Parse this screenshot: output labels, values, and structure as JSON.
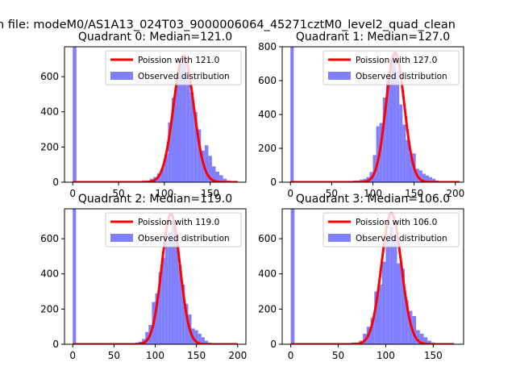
{
  "figure": {
    "suptitle": "n file: modeM0/AS1A13_024T03_9000006064_45271cztM0_level2_quad_clean",
    "background": "#ffffff"
  },
  "colors": {
    "poisson_line": "#ff0000",
    "observed_bars": "#8080ff",
    "axes": "#000000"
  },
  "chart_data": [
    {
      "type": "bar",
      "title": "Quadrant 0: Median=121.0",
      "xlim": [
        -9,
        189
      ],
      "ylim": [
        0,
        770
      ],
      "xticks": [
        0,
        50,
        100,
        150
      ],
      "yticks": [
        0,
        200,
        400,
        600
      ],
      "legend": {
        "placement": "top-right",
        "entries": [
          "Poission with 121.0",
          "Observed distribution"
        ]
      },
      "median": 121.0,
      "poisson_line": {
        "name": "Poission with 121.0",
        "x_range": [
          0,
          180
        ],
        "peak": 720,
        "mean": 121,
        "sd": 11
      },
      "histogram": {
        "name": "Observed distribution",
        "bins": [
          {
            "x0": 0,
            "x1": 4,
            "count": 770
          },
          {
            "x0": 64,
            "x1": 68,
            "count": 5
          },
          {
            "x0": 68,
            "x1": 72,
            "count": 5
          },
          {
            "x0": 72,
            "x1": 76,
            "count": 5
          },
          {
            "x0": 76,
            "x1": 80,
            "count": 10
          },
          {
            "x0": 80,
            "x1": 84,
            "count": 10
          },
          {
            "x0": 84,
            "x1": 88,
            "count": 20
          },
          {
            "x0": 88,
            "x1": 92,
            "count": 30
          },
          {
            "x0": 92,
            "x1": 96,
            "count": 50
          },
          {
            "x0": 96,
            "x1": 100,
            "count": 80
          },
          {
            "x0": 100,
            "x1": 104,
            "count": 160
          },
          {
            "x0": 104,
            "x1": 108,
            "count": 340
          },
          {
            "x0": 108,
            "x1": 112,
            "count": 480
          },
          {
            "x0": 112,
            "x1": 116,
            "count": 600
          },
          {
            "x0": 116,
            "x1": 120,
            "count": 690
          },
          {
            "x0": 120,
            "x1": 124,
            "count": 710
          },
          {
            "x0": 124,
            "x1": 128,
            "count": 610
          },
          {
            "x0": 128,
            "x1": 132,
            "count": 510
          },
          {
            "x0": 132,
            "x1": 136,
            "count": 400
          },
          {
            "x0": 136,
            "x1": 140,
            "count": 300
          },
          {
            "x0": 140,
            "x1": 144,
            "count": 180
          },
          {
            "x0": 144,
            "x1": 148,
            "count": 210
          },
          {
            "x0": 148,
            "x1": 152,
            "count": 150
          },
          {
            "x0": 152,
            "x1": 156,
            "count": 90
          },
          {
            "x0": 156,
            "x1": 160,
            "count": 60
          },
          {
            "x0": 160,
            "x1": 164,
            "count": 40
          },
          {
            "x0": 164,
            "x1": 168,
            "count": 20
          },
          {
            "x0": 168,
            "x1": 172,
            "count": 10
          }
        ]
      }
    },
    {
      "type": "bar",
      "title": "Quadrant 1: Median=127.0",
      "xlim": [
        -10,
        210
      ],
      "ylim": [
        0,
        800
      ],
      "xticks": [
        0,
        50,
        100,
        150,
        200
      ],
      "yticks": [
        0,
        200,
        400,
        600,
        800
      ],
      "legend": {
        "placement": "top-right",
        "entries": [
          "Poission with 127.0",
          "Observed distribution"
        ]
      },
      "median": 127.0,
      "poisson_line": {
        "name": "Poission with 127.0",
        "x_range": [
          0,
          205
        ],
        "peak": 765,
        "mean": 127,
        "sd": 11
      },
      "histogram": {
        "name": "Observed distribution",
        "bins": [
          {
            "x0": 0,
            "x1": 4,
            "count": 800
          },
          {
            "x0": 64,
            "x1": 68,
            "count": 5
          },
          {
            "x0": 68,
            "x1": 72,
            "count": 5
          },
          {
            "x0": 72,
            "x1": 76,
            "count": 5
          },
          {
            "x0": 76,
            "x1": 80,
            "count": 10
          },
          {
            "x0": 80,
            "x1": 84,
            "count": 10
          },
          {
            "x0": 84,
            "x1": 88,
            "count": 15
          },
          {
            "x0": 88,
            "x1": 92,
            "count": 20
          },
          {
            "x0": 92,
            "x1": 96,
            "count": 30
          },
          {
            "x0": 96,
            "x1": 100,
            "count": 60
          },
          {
            "x0": 100,
            "x1": 104,
            "count": 160
          },
          {
            "x0": 104,
            "x1": 108,
            "count": 330
          },
          {
            "x0": 108,
            "x1": 112,
            "count": 350
          },
          {
            "x0": 112,
            "x1": 116,
            "count": 500
          },
          {
            "x0": 116,
            "x1": 120,
            "count": 620
          },
          {
            "x0": 120,
            "x1": 124,
            "count": 730
          },
          {
            "x0": 124,
            "x1": 128,
            "count": 750
          },
          {
            "x0": 128,
            "x1": 132,
            "count": 660
          },
          {
            "x0": 132,
            "x1": 136,
            "count": 460
          },
          {
            "x0": 136,
            "x1": 140,
            "count": 340
          },
          {
            "x0": 140,
            "x1": 144,
            "count": 250
          },
          {
            "x0": 144,
            "x1": 148,
            "count": 170
          },
          {
            "x0": 148,
            "x1": 152,
            "count": 170
          },
          {
            "x0": 152,
            "x1": 156,
            "count": 80
          },
          {
            "x0": 156,
            "x1": 160,
            "count": 70
          },
          {
            "x0": 160,
            "x1": 164,
            "count": 50
          },
          {
            "x0": 164,
            "x1": 168,
            "count": 40
          },
          {
            "x0": 168,
            "x1": 172,
            "count": 30
          },
          {
            "x0": 172,
            "x1": 176,
            "count": 20
          },
          {
            "x0": 176,
            "x1": 180,
            "count": 10
          },
          {
            "x0": 180,
            "x1": 184,
            "count": 5
          }
        ]
      }
    },
    {
      "type": "bar",
      "title": "Quadrant 2: Median=119.0",
      "xlim": [
        -10,
        210
      ],
      "ylim": [
        0,
        770
      ],
      "xticks": [
        0,
        50,
        100,
        150,
        200
      ],
      "yticks": [
        0,
        200,
        400,
        600
      ],
      "legend": {
        "placement": "top-right",
        "entries": [
          "Poission with 119.0",
          "Observed distribution"
        ]
      },
      "median": 119.0,
      "poisson_line": {
        "name": "Poission with 119.0",
        "x_range": [
          0,
          200
        ],
        "peak": 740,
        "mean": 119,
        "sd": 11
      },
      "histogram": {
        "name": "Observed distribution",
        "bins": [
          {
            "x0": 0,
            "x1": 4,
            "count": 770
          },
          {
            "x0": 64,
            "x1": 68,
            "count": 5
          },
          {
            "x0": 68,
            "x1": 72,
            "count": 5
          },
          {
            "x0": 72,
            "x1": 76,
            "count": 5
          },
          {
            "x0": 76,
            "x1": 80,
            "count": 10
          },
          {
            "x0": 80,
            "x1": 84,
            "count": 15
          },
          {
            "x0": 84,
            "x1": 88,
            "count": 30
          },
          {
            "x0": 88,
            "x1": 92,
            "count": 70
          },
          {
            "x0": 92,
            "x1": 96,
            "count": 110
          },
          {
            "x0": 96,
            "x1": 100,
            "count": 240
          },
          {
            "x0": 100,
            "x1": 104,
            "count": 290
          },
          {
            "x0": 104,
            "x1": 108,
            "count": 410
          },
          {
            "x0": 108,
            "x1": 112,
            "count": 490
          },
          {
            "x0": 112,
            "x1": 116,
            "count": 590
          },
          {
            "x0": 116,
            "x1": 120,
            "count": 640
          },
          {
            "x0": 120,
            "x1": 124,
            "count": 700
          },
          {
            "x0": 124,
            "x1": 128,
            "count": 620
          },
          {
            "x0": 128,
            "x1": 132,
            "count": 450
          },
          {
            "x0": 132,
            "x1": 136,
            "count": 340
          },
          {
            "x0": 136,
            "x1": 140,
            "count": 230
          },
          {
            "x0": 140,
            "x1": 144,
            "count": 170
          },
          {
            "x0": 144,
            "x1": 148,
            "count": 90
          },
          {
            "x0": 148,
            "x1": 152,
            "count": 80
          },
          {
            "x0": 152,
            "x1": 156,
            "count": 60
          },
          {
            "x0": 156,
            "x1": 160,
            "count": 40
          },
          {
            "x0": 160,
            "x1": 164,
            "count": 20
          },
          {
            "x0": 164,
            "x1": 168,
            "count": 10
          }
        ]
      }
    },
    {
      "type": "bar",
      "title": "Quadrant 3: Median=106.0",
      "xlim": [
        -9,
        182
      ],
      "ylim": [
        0,
        770
      ],
      "xticks": [
        0,
        50,
        100,
        150
      ],
      "yticks": [
        0,
        200,
        400,
        600
      ],
      "legend": {
        "placement": "top-right",
        "entries": [
          "Poission with 106.0",
          "Observed distribution"
        ]
      },
      "median": 106.0,
      "poisson_line": {
        "name": "Poission with 106.0",
        "x_range": [
          0,
          172
        ],
        "peak": 745,
        "mean": 106,
        "sd": 10.5
      },
      "histogram": {
        "name": "Observed distribution",
        "bins": [
          {
            "x0": 0,
            "x1": 4,
            "count": 770
          },
          {
            "x0": 56,
            "x1": 60,
            "count": 5
          },
          {
            "x0": 60,
            "x1": 64,
            "count": 5
          },
          {
            "x0": 64,
            "x1": 68,
            "count": 10
          },
          {
            "x0": 68,
            "x1": 72,
            "count": 10
          },
          {
            "x0": 72,
            "x1": 76,
            "count": 20
          },
          {
            "x0": 76,
            "x1": 80,
            "count": 60
          },
          {
            "x0": 80,
            "x1": 84,
            "count": 100
          },
          {
            "x0": 84,
            "x1": 88,
            "count": 150
          },
          {
            "x0": 88,
            "x1": 92,
            "count": 300
          },
          {
            "x0": 92,
            "x1": 96,
            "count": 340
          },
          {
            "x0": 96,
            "x1": 100,
            "count": 470
          },
          {
            "x0": 100,
            "x1": 104,
            "count": 600
          },
          {
            "x0": 104,
            "x1": 108,
            "count": 670
          },
          {
            "x0": 108,
            "x1": 112,
            "count": 620
          },
          {
            "x0": 112,
            "x1": 116,
            "count": 460
          },
          {
            "x0": 116,
            "x1": 120,
            "count": 430
          },
          {
            "x0": 120,
            "x1": 124,
            "count": 250
          },
          {
            "x0": 124,
            "x1": 128,
            "count": 190
          },
          {
            "x0": 128,
            "x1": 132,
            "count": 160
          },
          {
            "x0": 132,
            "x1": 136,
            "count": 80
          },
          {
            "x0": 136,
            "x1": 140,
            "count": 60
          },
          {
            "x0": 140,
            "x1": 144,
            "count": 40
          },
          {
            "x0": 144,
            "x1": 148,
            "count": 20
          },
          {
            "x0": 148,
            "x1": 152,
            "count": 10
          }
        ]
      }
    }
  ]
}
